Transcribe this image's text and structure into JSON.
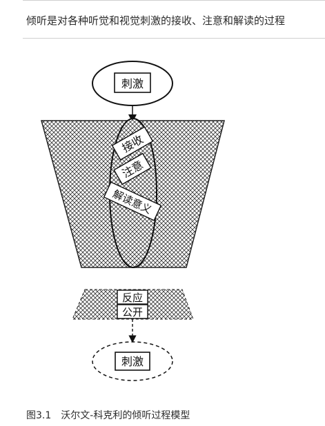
{
  "heading": "倾听是对各种听觉和视觉刺激的接收、注意和解读的过程",
  "diagram": {
    "top_stimulus": "刺激",
    "receive": "接收",
    "attend": "注意",
    "interpret": "解读意义",
    "respond": "反应",
    "overt": "公开",
    "bottom_stimulus": "刺激"
  },
  "caption": {
    "figure_number": "图3.1",
    "title": "沃尔文-科克利的倾听过程模型"
  }
}
